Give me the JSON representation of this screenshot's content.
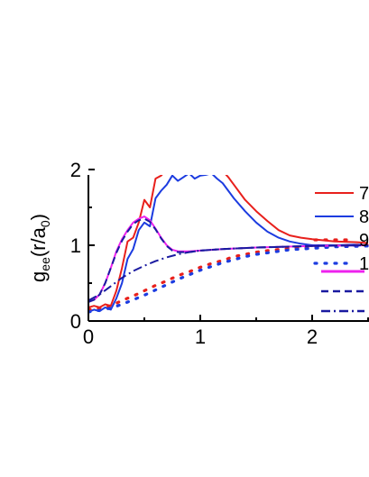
{
  "chart_data": {
    "type": "line",
    "ylabel": {
      "main": "g",
      "sub1": "ee",
      "mid": "(r/a",
      "sub2": "0",
      "end": ")"
    },
    "xlim": [
      0,
      2.5
    ],
    "ylim": [
      0,
      2.5
    ],
    "x_ticks": [
      {
        "value": 0,
        "label": "0"
      },
      {
        "value": 1,
        "label": "1"
      },
      {
        "value": 2,
        "label": "2"
      }
    ],
    "y_ticks": [
      {
        "value": 0,
        "label": "0"
      },
      {
        "value": 1,
        "label": "1"
      },
      {
        "value": 2,
        "label": "2"
      }
    ],
    "legend_top": [
      {
        "label": "7",
        "color": "#e8201c",
        "dash": "solid"
      },
      {
        "label": "8",
        "color": "#1c3ce0",
        "dash": "solid"
      },
      {
        "label": "9",
        "color": "#e8201c",
        "dash": "dot"
      },
      {
        "label": "1",
        "color": "#1c3ce0",
        "dash": "dot"
      }
    ],
    "legend_bottom": [
      {
        "label": "",
        "color": "#ee22ee",
        "dash": "solid"
      },
      {
        "label": "",
        "color": "#1a1aa0",
        "dash": "dash"
      },
      {
        "label": "",
        "color": "#1a1aa0",
        "dash": "dashdot"
      }
    ],
    "series": [
      {
        "color": "#e8201c",
        "dash": "solid",
        "x": [
          0.0,
          0.05,
          0.1,
          0.15,
          0.2,
          0.25,
          0.3,
          0.35,
          0.4,
          0.45,
          0.5,
          0.55,
          0.6,
          0.65,
          0.7,
          0.75,
          0.8,
          0.85,
          0.9,
          0.95,
          1.0,
          1.05,
          1.1,
          1.15,
          1.2,
          1.25,
          1.3,
          1.4,
          1.5,
          1.6,
          1.7,
          1.8,
          1.9,
          2.0,
          2.2,
          2.4,
          2.5
        ],
        "y": [
          0.18,
          0.2,
          0.18,
          0.22,
          0.2,
          0.4,
          0.7,
          1.05,
          1.1,
          1.3,
          1.6,
          1.5,
          1.88,
          1.92,
          2.0,
          2.25,
          2.15,
          2.18,
          2.28,
          2.2,
          2.25,
          2.2,
          2.15,
          2.05,
          1.98,
          1.9,
          1.8,
          1.6,
          1.45,
          1.32,
          1.2,
          1.13,
          1.1,
          1.08,
          1.05,
          1.04,
          1.03
        ]
      },
      {
        "color": "#1c3ce0",
        "dash": "solid",
        "x": [
          0.0,
          0.05,
          0.1,
          0.15,
          0.2,
          0.25,
          0.3,
          0.35,
          0.4,
          0.45,
          0.5,
          0.55,
          0.6,
          0.65,
          0.7,
          0.75,
          0.8,
          0.85,
          0.9,
          0.95,
          1.0,
          1.05,
          1.1,
          1.15,
          1.2,
          1.25,
          1.3,
          1.4,
          1.5,
          1.6,
          1.7,
          1.8,
          1.9,
          2.0,
          2.2,
          2.4,
          2.5
        ],
        "y": [
          0.12,
          0.15,
          0.13,
          0.18,
          0.15,
          0.3,
          0.5,
          0.82,
          0.95,
          1.2,
          1.3,
          1.25,
          1.62,
          1.72,
          1.8,
          1.92,
          1.85,
          1.9,
          1.95,
          1.88,
          1.92,
          1.93,
          1.95,
          1.88,
          1.82,
          1.72,
          1.62,
          1.45,
          1.3,
          1.18,
          1.1,
          1.05,
          1.02,
          1.0,
          1.0,
          1.01,
          1.0
        ]
      },
      {
        "color": "#e8201c",
        "dash": "dot",
        "x": [
          0.0,
          0.1,
          0.2,
          0.3,
          0.4,
          0.5,
          0.6,
          0.7,
          0.8,
          0.9,
          1.0,
          1.1,
          1.2,
          1.3,
          1.4,
          1.5,
          1.6,
          1.8,
          2.0,
          2.2,
          2.5
        ],
        "y": [
          0.15,
          0.17,
          0.2,
          0.27,
          0.33,
          0.4,
          0.47,
          0.53,
          0.6,
          0.65,
          0.71,
          0.76,
          0.8,
          0.85,
          0.88,
          0.91,
          0.93,
          0.96,
          0.98,
          0.99,
          1.0
        ]
      },
      {
        "color": "#1c3ce0",
        "dash": "dot",
        "x": [
          0.0,
          0.1,
          0.2,
          0.3,
          0.4,
          0.5,
          0.6,
          0.7,
          0.8,
          0.9,
          1.0,
          1.1,
          1.2,
          1.3,
          1.4,
          1.5,
          1.6,
          1.8,
          2.0,
          2.2,
          2.5
        ],
        "y": [
          0.12,
          0.14,
          0.17,
          0.22,
          0.28,
          0.34,
          0.41,
          0.48,
          0.55,
          0.61,
          0.67,
          0.72,
          0.77,
          0.81,
          0.85,
          0.88,
          0.9,
          0.94,
          0.96,
          0.98,
          0.99
        ]
      },
      {
        "color": "#ee22ee",
        "dash": "solid",
        "x": [
          0.0,
          0.05,
          0.1,
          0.15,
          0.2,
          0.25,
          0.3,
          0.35,
          0.4,
          0.45,
          0.5,
          0.55,
          0.6,
          0.65,
          0.7,
          0.75,
          0.8,
          0.9,
          1.0,
          1.2,
          1.5,
          2.0,
          2.5
        ],
        "y": [
          0.25,
          0.28,
          0.35,
          0.5,
          0.7,
          0.92,
          1.08,
          1.2,
          1.3,
          1.35,
          1.38,
          1.33,
          1.22,
          1.1,
          1.0,
          0.94,
          0.92,
          0.92,
          0.93,
          0.95,
          0.97,
          0.99,
          1.0
        ]
      },
      {
        "color": "#1a1aa0",
        "dash": "dash",
        "x": [
          0.0,
          0.05,
          0.1,
          0.15,
          0.2,
          0.25,
          0.3,
          0.35,
          0.4,
          0.45,
          0.5,
          0.55,
          0.6,
          0.65,
          0.7,
          0.75,
          0.8,
          0.9,
          1.0,
          1.2,
          1.5,
          2.0,
          2.5
        ],
        "y": [
          0.25,
          0.28,
          0.35,
          0.5,
          0.7,
          0.9,
          1.06,
          1.18,
          1.28,
          1.33,
          1.35,
          1.31,
          1.21,
          1.09,
          0.99,
          0.93,
          0.91,
          0.91,
          0.93,
          0.95,
          0.97,
          0.99,
          1.0
        ]
      },
      {
        "color": "#1a1aa0",
        "dash": "dashdot",
        "x": [
          0.0,
          0.1,
          0.2,
          0.3,
          0.4,
          0.5,
          0.6,
          0.7,
          0.8,
          0.9,
          1.0,
          1.2,
          1.5,
          2.0,
          2.5
        ],
        "y": [
          0.27,
          0.35,
          0.46,
          0.57,
          0.66,
          0.73,
          0.79,
          0.84,
          0.88,
          0.91,
          0.93,
          0.95,
          0.97,
          0.99,
          1.0
        ]
      }
    ]
  }
}
